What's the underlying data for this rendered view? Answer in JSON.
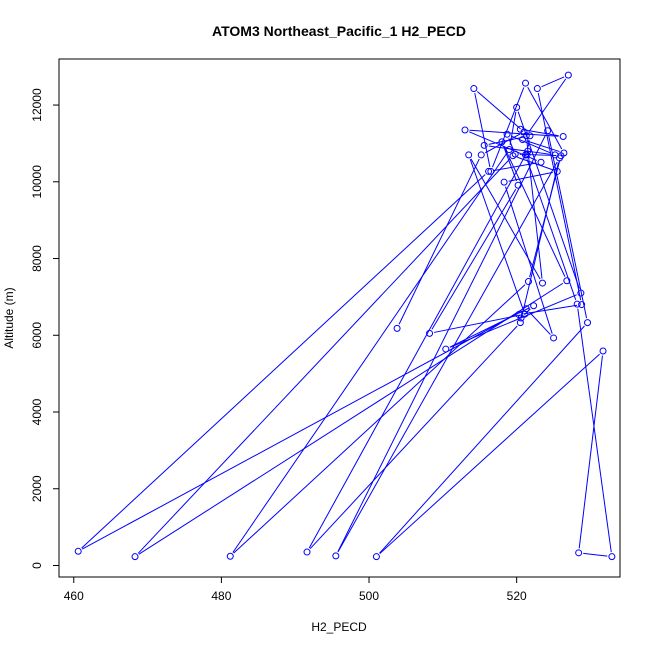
{
  "chart_data": {
    "type": "line",
    "title": "ATOM3 Northeast_Pacific_1 H2_PECD",
    "xlabel": "H2_PECD",
    "ylabel": "Altitude (m)",
    "xlim": [
      458,
      534
    ],
    "ylim": [
      -300,
      13200
    ],
    "xticks": [
      460,
      480,
      500,
      520
    ],
    "yticks": [
      0,
      2000,
      4000,
      6000,
      8000,
      10000,
      12000
    ],
    "grid": false,
    "series_color": "#0000ff",
    "marker": "open-circle",
    "series": [
      {
        "x": [
          503.8,
          515.2,
          521.0,
          514.2,
          516.5,
          521.2,
          526.4,
          520.8,
          520.5,
          526.3,
          513.0,
          523.3,
          516.2,
          460.6,
          521.3,
          525.0,
          518.3,
          525.5,
          519.5,
          468.3,
          526.8,
          518.0,
          520.2,
          508.2,
          521.1,
          513.5,
          523.5,
          521.3,
          527.0,
          522.8,
          528.8,
          520.3,
          520.6,
          522.3,
          510.4,
          528.7,
          520.0,
          519.0,
          481.2,
          521.6,
          526.0,
          519.8,
          518.7,
          525.2,
          515.6,
          521.8,
          521.5,
          491.6,
          520.5,
          525.8,
          495.5,
          524.2,
          529.6,
          501.0,
          531.7,
          528.4,
          532.9,
          528.2,
          521.2,
          521.2,
          521.4
        ],
        "y": [
          6180,
          10700,
          11300,
          12430,
          10270,
          12570,
          10750,
          11100,
          11370,
          11180,
          11350,
          10510,
          10270,
          370,
          6690,
          5930,
          9990,
          10270,
          10680,
          230,
          7420,
          11040,
          9910,
          6050,
          6550,
          10700,
          7360,
          11200,
          12780,
          12430,
          6800,
          6540,
          6450,
          6770,
          5640,
          7100,
          11940,
          10840,
          240,
          7400,
          10680,
          10720,
          11240,
          10700,
          10950,
          11200,
          10800,
          350,
          6330,
          10620,
          250,
          11330,
          6330,
          230,
          5590,
          330,
          230,
          6810,
          10700,
          10700,
          10700
        ]
      }
    ]
  }
}
